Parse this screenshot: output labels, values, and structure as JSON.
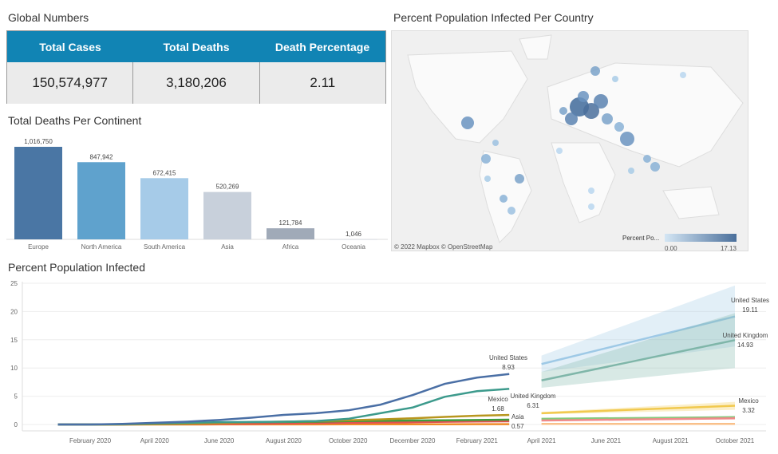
{
  "global": {
    "title": "Global Numbers",
    "headers": [
      "Total Cases",
      "Total Deaths",
      "Death Percentage"
    ],
    "values": [
      "150,574,977",
      "3,180,206",
      "2.11"
    ]
  },
  "bars": {
    "title": "Total Deaths Per Continent"
  },
  "map": {
    "title": "Percent Population Infected Per Country",
    "attribution": "© 2022 Mapbox  © OpenStreetMap",
    "legend_title": "Percent Po...",
    "legend_min": "0.00",
    "legend_max": "17.13",
    "colors": [
      "#d4e6f4",
      "#4a6f9b"
    ]
  },
  "line": {
    "title": "Percent Population Infected"
  },
  "chart_data": [
    {
      "type": "bar",
      "title": "Total Deaths Per Continent",
      "categories": [
        "Europe",
        "North America",
        "South America",
        "Asia",
        "Africa",
        "Oceania"
      ],
      "values": [
        1016750,
        847942,
        672415,
        520269,
        121784,
        1046
      ],
      "labels": [
        "1,016,750",
        "847,942",
        "672,415",
        "520,269",
        "121,784",
        "1,046"
      ],
      "colors": [
        "#4a76a4",
        "#5fa2cd",
        "#a6cbe8",
        "#c8d0db",
        "#a0aab8",
        "#c8d0db"
      ],
      "ylim": [
        0,
        1016750
      ]
    },
    {
      "type": "line",
      "title": "Percent Population Infected",
      "ylim": [
        0,
        25
      ],
      "yticks": [
        0,
        5,
        10,
        15,
        20,
        25
      ],
      "xticks": [
        "February 2020",
        "April 2020",
        "June 2020",
        "August 2020",
        "October 2020",
        "December 2020",
        "February 2021",
        "April 2021",
        "June 2021",
        "August 2021",
        "October 2021"
      ],
      "actual_months": [
        "2020-01",
        "2020-02",
        "2020-03",
        "2020-04",
        "2020-05",
        "2020-06",
        "2020-07",
        "2020-08",
        "2020-09",
        "2020-10",
        "2020-11",
        "2020-12",
        "2021-01",
        "2021-02",
        "2021-03"
      ],
      "series": [
        {
          "name": "United States",
          "label": "United States",
          "end_label": "8.93",
          "color": "#4a6fa5",
          "values": [
            0,
            0,
            0.1,
            0.3,
            0.5,
            0.8,
            1.2,
            1.7,
            2.0,
            2.5,
            3.5,
            5.2,
            7.2,
            8.3,
            8.93
          ],
          "forecast": {
            "start": 10.7,
            "end": 19.11,
            "end_label": "19.11",
            "lo": [
              9.3,
              13.8
            ],
            "hi": [
              12.2,
              24.6
            ],
            "color": "#9ec9e6"
          }
        },
        {
          "name": "United Kingdom",
          "label": "United Kingdom",
          "end_label": "6.31",
          "color": "#3c9a8c",
          "values": [
            0,
            0,
            0.05,
            0.2,
            0.3,
            0.4,
            0.45,
            0.5,
            0.6,
            1.0,
            2.0,
            3.0,
            4.9,
            5.9,
            6.31
          ],
          "forecast": {
            "start": 7.8,
            "end": 14.93,
            "end_label": "14.93",
            "lo": [
              6.5,
              10
            ],
            "hi": [
              9.3,
              19.7
            ],
            "color": "#7fb6a9"
          }
        },
        {
          "name": "Mexico",
          "label": "Mexico",
          "end_label": "1.68",
          "color": "#b8961e",
          "values": [
            0,
            0,
            0,
            0.05,
            0.1,
            0.25,
            0.4,
            0.5,
            0.6,
            0.75,
            0.9,
            1.1,
            1.35,
            1.55,
            1.68
          ],
          "forecast": {
            "start": 2.0,
            "end": 3.32,
            "end_label": "3.32",
            "lo": [
              1.8,
              2.6
            ],
            "hi": [
              2.2,
              4.0
            ],
            "color": "#f1c94e"
          }
        },
        {
          "name": "",
          "label": null,
          "color": "#3f9c3c",
          "values": [
            0,
            0,
            0.02,
            0.1,
            0.2,
            0.3,
            0.4,
            0.45,
            0.5,
            0.6,
            0.65,
            0.7,
            0.75,
            0.8,
            0.85
          ],
          "forecast": {
            "start": 1.0,
            "end": 1.3,
            "lo": [
              0.9,
              1.2
            ],
            "hi": [
              1.1,
              1.4
            ],
            "color": "#86c97d"
          }
        },
        {
          "name": "Asia",
          "label": "Asia",
          "end_label": "0.57",
          "color": "#e05252",
          "values": [
            0,
            0,
            0.02,
            0.04,
            0.06,
            0.1,
            0.15,
            0.2,
            0.25,
            0.3,
            0.35,
            0.4,
            0.47,
            0.53,
            0.57
          ],
          "forecast": {
            "start": 0.7,
            "end": 1.1,
            "lo": [
              0.6,
              0.9
            ],
            "hi": [
              0.8,
              1.3
            ],
            "color": "#f08a8a"
          }
        },
        {
          "name": "",
          "label": null,
          "color": "#f08c28",
          "values": [
            0,
            0,
            0,
            0,
            0,
            0.01,
            0.01,
            0.02,
            0.02,
            0.03,
            0.03,
            0.04,
            0.04,
            0.05,
            0.05
          ],
          "forecast": {
            "start": 0.1,
            "end": 0.1,
            "lo": [
              0.05,
              0.05
            ],
            "hi": [
              0.15,
              0.15
            ],
            "color": "#f9c08a"
          }
        }
      ]
    }
  ]
}
